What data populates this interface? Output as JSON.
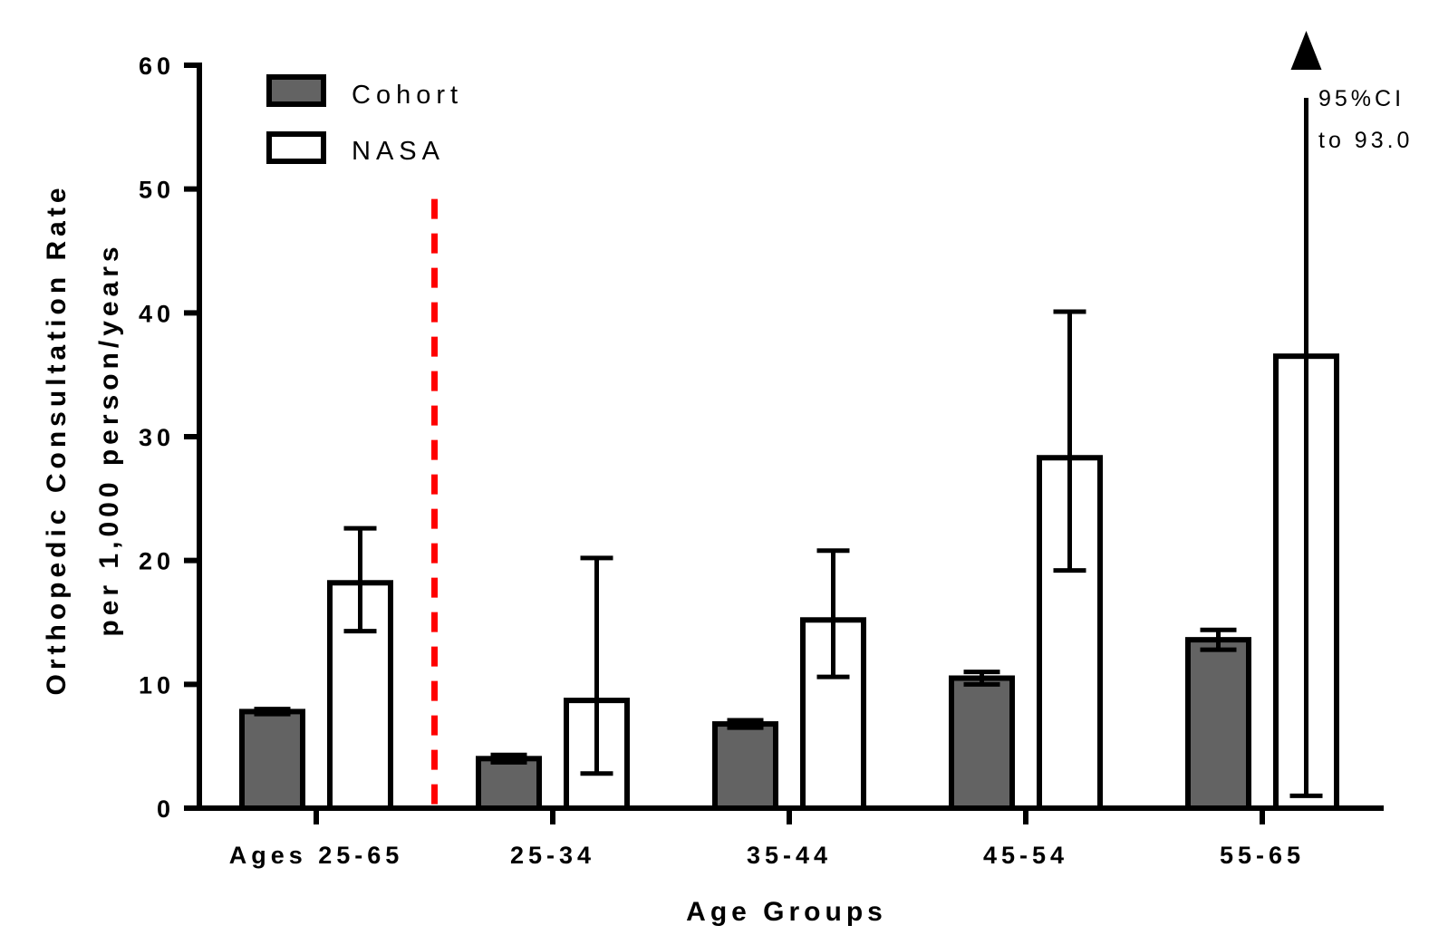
{
  "chart_data": {
    "type": "bar",
    "categories": [
      "Ages 25-65",
      "25-34",
      "35-44",
      "45-54",
      "55-65"
    ],
    "series": [
      {
        "name": "Cohort",
        "color": "#636363",
        "values": [
          7.8,
          4.0,
          6.8,
          10.5,
          13.6
        ],
        "ci_low": [
          7.6,
          3.7,
          6.5,
          10.0,
          12.8
        ],
        "ci_high": [
          8.0,
          4.3,
          7.1,
          11.0,
          14.4
        ]
      },
      {
        "name": "NASA",
        "color": "#ffffff",
        "values": [
          18.2,
          8.7,
          15.2,
          28.3,
          36.5
        ],
        "ci_low": [
          14.3,
          2.8,
          10.6,
          19.2,
          1.0
        ],
        "ci_high": [
          22.6,
          20.2,
          20.8,
          40.1,
          60.0
        ]
      }
    ],
    "ylabel_line1": "Orthopedic Consultation Rate",
    "ylabel_line2": "per 1,000 person/years",
    "xlabel": "Age Groups",
    "ylim": [
      0,
      60
    ],
    "yticks": [
      0,
      10,
      20,
      30,
      40,
      50,
      60
    ],
    "grid": false,
    "legend_position": "top-left",
    "divider_color": "#ff0000",
    "annotation_line1": "95%CI",
    "annotation_line2": "to 93.0"
  }
}
